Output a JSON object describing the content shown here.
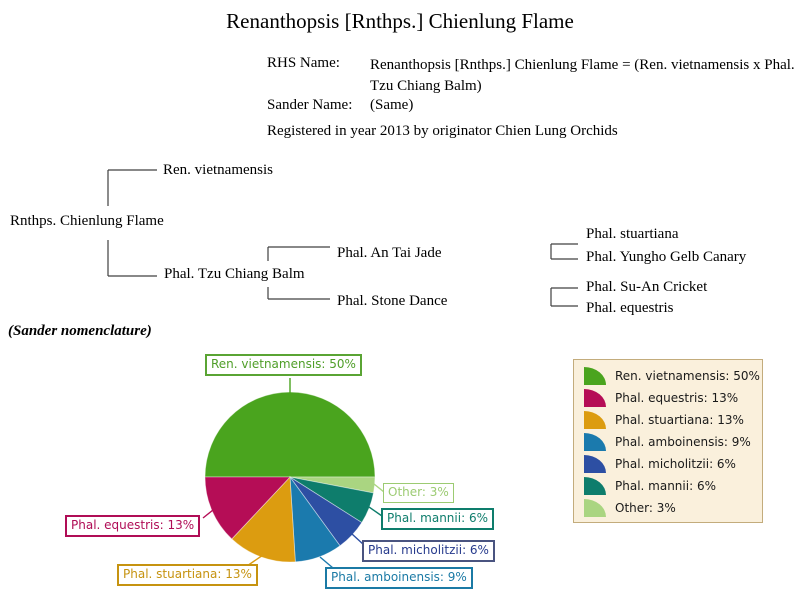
{
  "page": {
    "title": "Renanthopsis [Rnthps.] Chienlung Flame",
    "rhs_label": "RHS Name:",
    "rhs_value": "Renanthopsis [Rnthps.] Chienlung Flame = (Ren. vietnamensis x Phal. Tzu Chiang Balm)",
    "sander_label": "Sander Name:",
    "sander_value": "(Same)",
    "registered_line": "Registered in year 2013 by originator Chien Lung Orchids",
    "nomenclature_note": "(Sander nomenclature)"
  },
  "tree": {
    "subject": "Rnthps. Chienlung Flame",
    "parents": [
      "Ren. vietnamensis",
      "Phal. Tzu Chiang Balm"
    ],
    "grandparents": [
      "Phal. An Tai Jade",
      "Phal. Stone Dance"
    ],
    "great_grandparents": [
      "Phal. stuartiana",
      "Phal. Yungho Gelb Canary",
      "Phal. Su-An Cricket",
      "Phal. equestris"
    ]
  },
  "chart_data": {
    "type": "pie",
    "title": "",
    "categories": [
      "Ren. vietnamensis",
      "Phal. equestris",
      "Phal. stuartiana",
      "Phal. amboinensis",
      "Phal. micholitzii",
      "Phal. mannii",
      "Other"
    ],
    "values": [
      50,
      13,
      13,
      9,
      6,
      6,
      3
    ],
    "display_labels": [
      "Ren. vietnamensis: 50%",
      "Phal. equestris: 13%",
      "Phal. stuartiana: 13%",
      "Phal. amboinensis: 9%",
      "Phal. micholitzii: 6%",
      "Phal. mannii: 6%",
      "Other: 3%"
    ],
    "colors": [
      "#4aa41e",
      "#b50d56",
      "#dc9c10",
      "#1b7aad",
      "#2d4fa3",
      "#0e7d6c",
      "#aad581"
    ],
    "callout_text_colors": [
      "#4f9e28",
      "#b00d56",
      "#c69310",
      "#1b7aa5",
      "#263a8c",
      "#0e7d6c",
      "#9ccb72"
    ],
    "callout_border_colors": [
      "#5aa434",
      "#b00d56",
      "#c69310",
      "#1b7aa5",
      "#4a5480",
      "#0e7d6c",
      "#9ccb72"
    ],
    "draw_order": [
      0,
      6,
      5,
      4,
      3,
      2,
      1
    ],
    "start_angle_deg": 180,
    "direction": "clockwise",
    "legend_position": "right",
    "legend_bg": "#faf0dc",
    "legend_border": "#c3ac7c"
  }
}
